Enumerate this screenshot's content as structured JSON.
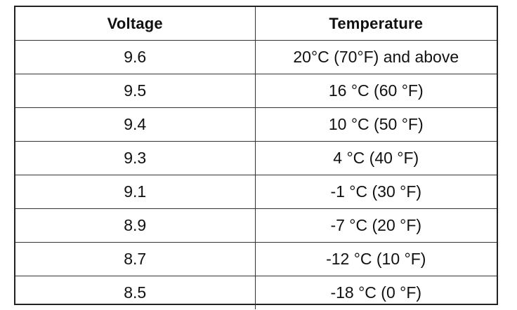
{
  "table": {
    "headers": {
      "voltage": "Voltage",
      "temperature": "Temperature"
    },
    "rows": [
      {
        "voltage": "9.6",
        "temperature": "20°C (70°F) and above"
      },
      {
        "voltage": "9.5",
        "temperature": "16 °C (60 °F)"
      },
      {
        "voltage": "9.4",
        "temperature": "10 °C (50 °F)"
      },
      {
        "voltage": "9.3",
        "temperature": "4 °C (40 °F)"
      },
      {
        "voltage": "9.1",
        "temperature": "-1 °C (30 °F)"
      },
      {
        "voltage": "8.9",
        "temperature": "-7 °C (20 °F)"
      },
      {
        "voltage": "8.7",
        "temperature": "-12 °C (10 °F)"
      },
      {
        "voltage": "8.5",
        "temperature": "-18 °C (0 °F)"
      }
    ]
  }
}
